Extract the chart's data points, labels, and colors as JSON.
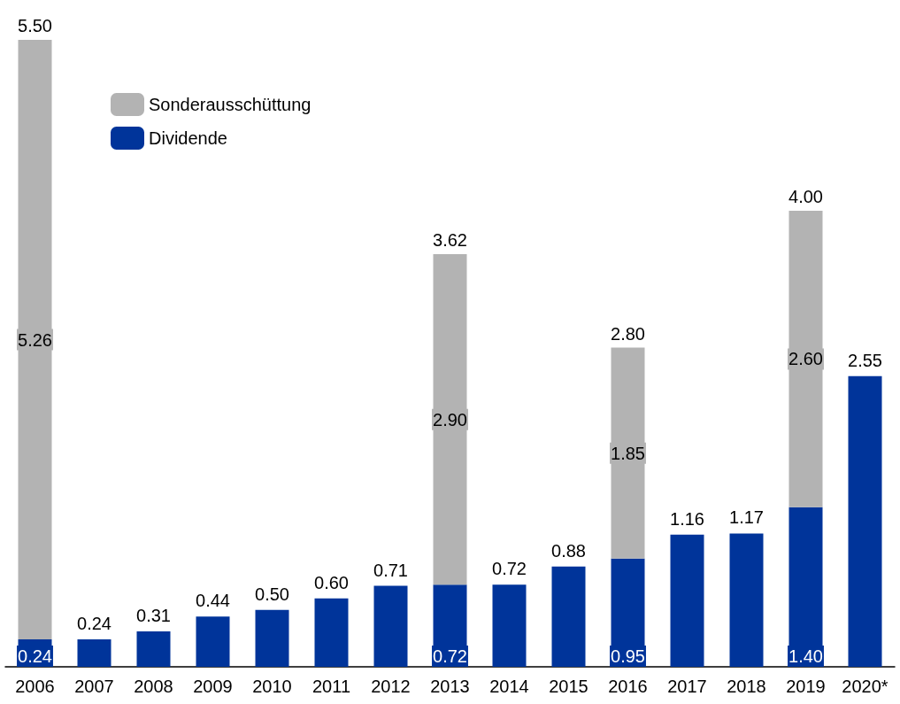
{
  "chart_data": {
    "type": "bar",
    "stacked": true,
    "categories": [
      "2006",
      "2007",
      "2008",
      "2009",
      "2010",
      "2011",
      "2012",
      "2013",
      "2014",
      "2015",
      "2016",
      "2017",
      "2018",
      "2019",
      "2020*"
    ],
    "series": [
      {
        "name": "Dividende",
        "color": "#00349a",
        "values": [
          0.24,
          0.24,
          0.31,
          0.44,
          0.5,
          0.6,
          0.71,
          0.72,
          0.72,
          0.88,
          0.95,
          1.16,
          1.17,
          1.4,
          2.55
        ],
        "value_labels": [
          "0.24",
          "0.24",
          "0.31",
          "0.44",
          "0.50",
          "0.60",
          "0.71",
          "0.72",
          "0.72",
          "0.88",
          "0.95",
          "1.16",
          "1.17",
          "1.40",
          "2.55"
        ]
      },
      {
        "name": "Sonderausschüttung",
        "color": "#b3b3b3",
        "values": [
          5.26,
          null,
          null,
          null,
          null,
          null,
          null,
          2.9,
          null,
          null,
          1.85,
          null,
          null,
          2.6,
          null
        ],
        "value_labels": [
          "5.26",
          null,
          null,
          null,
          null,
          null,
          null,
          "2.90",
          null,
          null,
          "1.85",
          null,
          null,
          "2.60",
          null
        ]
      }
    ],
    "totals": [
      "5.50",
      null,
      null,
      null,
      null,
      null,
      null,
      "3.62",
      null,
      null,
      "2.80",
      null,
      null,
      "4.00",
      null
    ],
    "ylim": [
      0,
      5.5
    ],
    "legend": "top left",
    "grid": false
  }
}
